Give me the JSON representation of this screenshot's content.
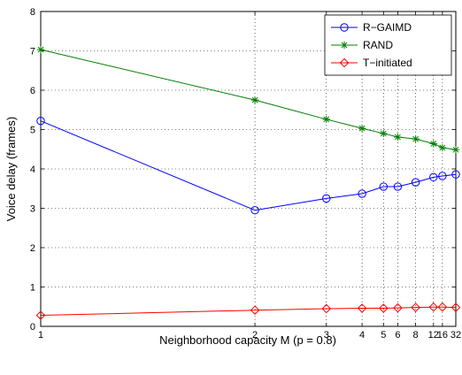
{
  "chart_data": {
    "type": "line",
    "title": "",
    "xlabel": "Neighborhood capacity M (p = 0.8)",
    "ylabel": "Voice delay (frames)",
    "x": [
      1,
      2,
      3,
      4,
      5,
      6,
      8,
      12,
      16,
      32
    ],
    "xticks": [
      1,
      2,
      3,
      4,
      5,
      6,
      8,
      12,
      16,
      32
    ],
    "x_scale": "reciprocal",
    "ylim": [
      0,
      8
    ],
    "yticks": [
      0,
      1,
      2,
      3,
      4,
      5,
      6,
      7,
      8
    ],
    "grid": true,
    "legend_position": "top-right",
    "series": [
      {
        "name": "R−GAIMD",
        "color": "#0000ff",
        "marker": "circle",
        "values": [
          5.22,
          2.95,
          3.25,
          3.37,
          3.55,
          3.55,
          3.66,
          3.79,
          3.82,
          3.86
        ]
      },
      {
        "name": "RAND",
        "color": "#008000",
        "marker": "asterisk",
        "values": [
          7.03,
          5.75,
          5.26,
          5.03,
          4.9,
          4.81,
          4.76,
          4.64,
          4.54,
          4.49
        ]
      },
      {
        "name": "T−initiated",
        "color": "#ff0000",
        "marker": "diamond",
        "values": [
          0.28,
          0.41,
          0.45,
          0.46,
          0.46,
          0.47,
          0.48,
          0.49,
          0.49,
          0.48
        ]
      }
    ]
  }
}
